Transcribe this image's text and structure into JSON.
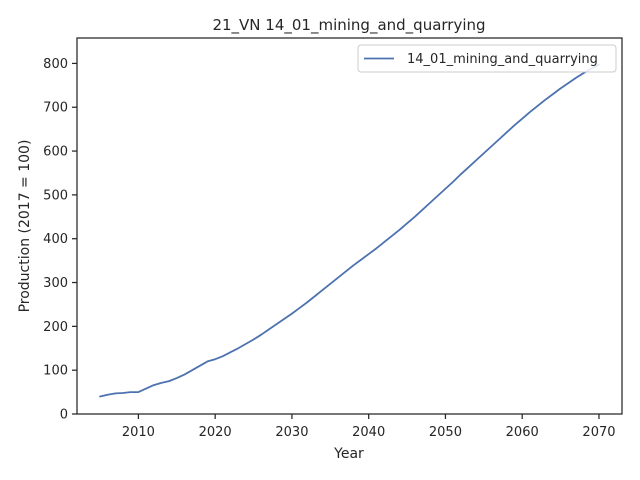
{
  "chart_data": {
    "type": "line",
    "title": "21_VN 14_01_mining_and_quarrying",
    "xlabel": "Year",
    "ylabel": "Production (2017 = 100)",
    "xlim": [
      2002,
      2073
    ],
    "ylim": [
      0,
      858
    ],
    "x_ticks": [
      2010,
      2020,
      2030,
      2040,
      2050,
      2060,
      2070
    ],
    "y_ticks": [
      0,
      100,
      200,
      300,
      400,
      500,
      600,
      700,
      800
    ],
    "grid": false,
    "legend_position": "top-right",
    "series": [
      {
        "name": "14_01_mining_and_quarrying",
        "color": "#4c72b0",
        "x": [
          2005,
          2006,
          2007,
          2008,
          2009,
          2010,
          2011,
          2012,
          2013,
          2014,
          2015,
          2016,
          2017,
          2018,
          2019,
          2020,
          2021,
          2022,
          2023,
          2024,
          2025,
          2026,
          2027,
          2028,
          2029,
          2030,
          2031,
          2032,
          2033,
          2034,
          2035,
          2036,
          2037,
          2038,
          2039,
          2040,
          2041,
          2042,
          2043,
          2044,
          2045,
          2046,
          2047,
          2048,
          2049,
          2050,
          2051,
          2052,
          2053,
          2054,
          2055,
          2056,
          2057,
          2058,
          2059,
          2060,
          2061,
          2062,
          2063,
          2064,
          2065,
          2066,
          2067,
          2068,
          2069,
          2070
        ],
        "values": [
          40,
          44,
          47,
          48,
          50,
          50,
          58,
          66,
          71,
          75,
          82,
          90,
          100,
          110,
          120,
          125,
          132,
          141,
          150,
          160,
          170,
          181,
          193,
          205,
          217,
          229,
          242,
          255,
          269,
          283,
          297,
          311,
          325,
          339,
          352,
          365,
          378,
          392,
          406,
          420,
          435,
          450,
          466,
          482,
          498,
          514,
          530,
          547,
          563,
          579,
          595,
          611,
          627,
          643,
          659,
          674,
          689,
          703,
          717,
          730,
          743,
          755,
          767,
          778,
          788,
          797
        ]
      }
    ]
  }
}
